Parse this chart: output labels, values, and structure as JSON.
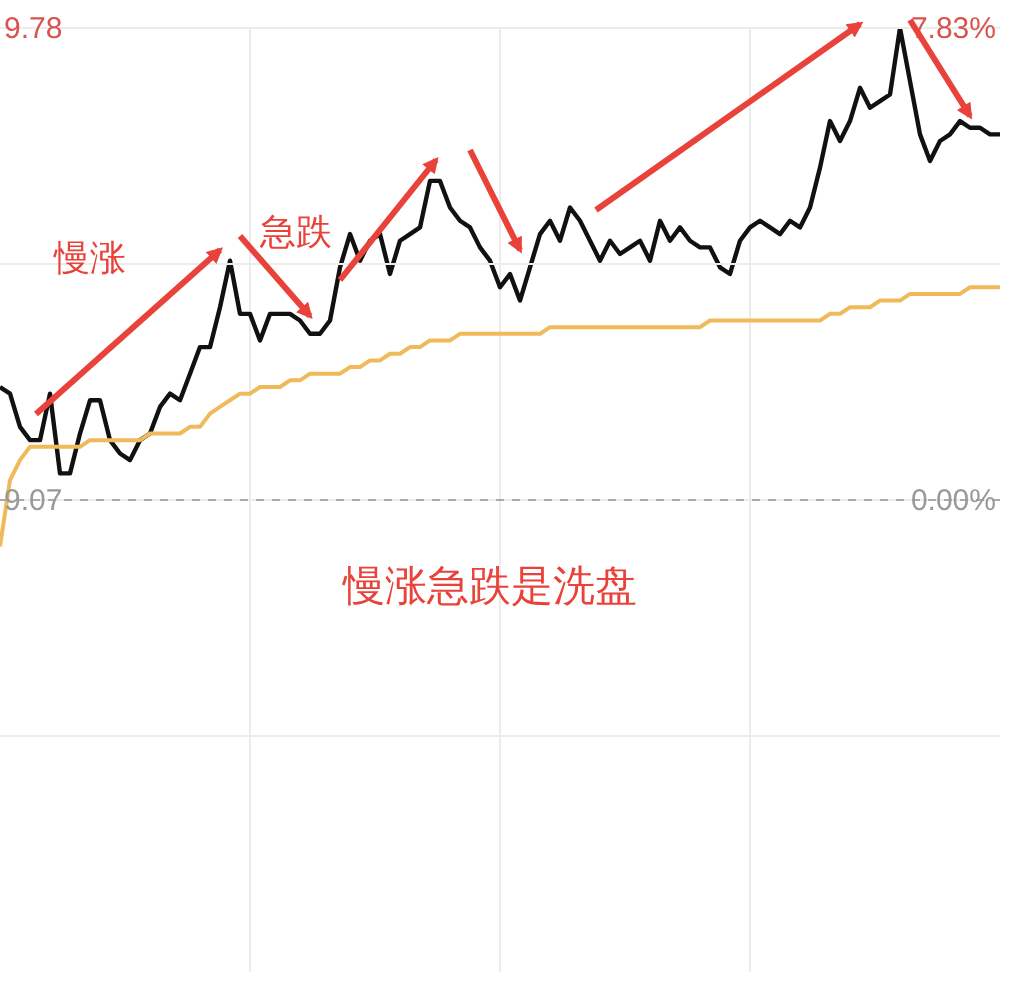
{
  "chart_data": {
    "type": "line",
    "categories": [
      null,
      null,
      null,
      null,
      null,
      null,
      null,
      null,
      null,
      null,
      null,
      null,
      null,
      null,
      null,
      null,
      null,
      null,
      null,
      null,
      null,
      null,
      null,
      null,
      null,
      null,
      null,
      null,
      null,
      null,
      null,
      null,
      null,
      null,
      null,
      null,
      null,
      null,
      null,
      null,
      null,
      null,
      null,
      null,
      null,
      null,
      null,
      null,
      null,
      null,
      null,
      null,
      null,
      null,
      null,
      null,
      null,
      null,
      null,
      null,
      null,
      null,
      null,
      null,
      null,
      null,
      null,
      null,
      null,
      null,
      null,
      null,
      null,
      null,
      null,
      null,
      null,
      null,
      null,
      null,
      null,
      null,
      null,
      null,
      null,
      null,
      null,
      null,
      null,
      null,
      null,
      null,
      null,
      null,
      null,
      null,
      null,
      null,
      null,
      null,
      null
    ],
    "series": [
      {
        "color": "#111111",
        "values": [
          9.24,
          9.23,
          9.18,
          9.16,
          9.16,
          9.23,
          9.11,
          9.11,
          9.17,
          9.22,
          9.22,
          9.16,
          9.14,
          9.13,
          9.16,
          9.17,
          9.21,
          9.23,
          9.22,
          9.26,
          9.3,
          9.3,
          9.36,
          9.43,
          9.35,
          9.35,
          9.31,
          9.35,
          9.35,
          9.35,
          9.34,
          9.32,
          9.32,
          9.34,
          9.42,
          9.47,
          9.43,
          9.46,
          9.47,
          9.41,
          9.46,
          9.47,
          9.48,
          9.55,
          9.55,
          9.51,
          9.49,
          9.48,
          9.45,
          9.43,
          9.39,
          9.41,
          9.37,
          9.42,
          9.47,
          9.49,
          9.46,
          9.51,
          9.49,
          9.46,
          9.43,
          9.46,
          9.44,
          9.45,
          9.46,
          9.43,
          9.49,
          9.46,
          9.48,
          9.46,
          9.45,
          9.45,
          9.42,
          9.41,
          9.46,
          9.48,
          9.49,
          9.48,
          9.47,
          9.49,
          9.48,
          9.51,
          9.57,
          9.64,
          9.61,
          9.64,
          9.69,
          9.66,
          9.67,
          9.68,
          9.78,
          9.7,
          9.62,
          9.58,
          9.61,
          9.62,
          9.64,
          9.63,
          9.63,
          9.62,
          9.62
        ]
      },
      {
        "color": "#f0b95a",
        "values": [
          9.0,
          9.1,
          9.13,
          9.15,
          9.15,
          9.15,
          9.15,
          9.15,
          9.15,
          9.16,
          9.16,
          9.16,
          9.16,
          9.16,
          9.16,
          9.17,
          9.17,
          9.17,
          9.17,
          9.18,
          9.18,
          9.2,
          9.21,
          9.22,
          9.23,
          9.23,
          9.24,
          9.24,
          9.24,
          9.25,
          9.25,
          9.26,
          9.26,
          9.26,
          9.26,
          9.27,
          9.27,
          9.28,
          9.28,
          9.29,
          9.29,
          9.3,
          9.3,
          9.31,
          9.31,
          9.31,
          9.32,
          9.32,
          9.32,
          9.32,
          9.32,
          9.32,
          9.32,
          9.32,
          9.32,
          9.33,
          9.33,
          9.33,
          9.33,
          9.33,
          9.33,
          9.33,
          9.33,
          9.33,
          9.33,
          9.33,
          9.33,
          9.33,
          9.33,
          9.33,
          9.33,
          9.34,
          9.34,
          9.34,
          9.34,
          9.34,
          9.34,
          9.34,
          9.34,
          9.34,
          9.34,
          9.34,
          9.34,
          9.35,
          9.35,
          9.36,
          9.36,
          9.36,
          9.37,
          9.37,
          9.37,
          9.38,
          9.38,
          9.38,
          9.38,
          9.38,
          9.38,
          9.39,
          9.39,
          9.39,
          9.39
        ]
      }
    ],
    "ylim": [
      8.36,
      9.78
    ],
    "yticks": [
      {
        "value": 8.715,
        "label": null
      },
      9.07,
      {
        "value": 9.425,
        "label": null
      },
      9.78
    ],
    "y2lim": [
      -7.83,
      7.83
    ],
    "y2ticks": [
      {
        "value": 0,
        "label": "0.00%"
      },
      {
        "value": 7.83,
        "label": "7.83%"
      }
    ],
    "ref_lines": [
      {
        "axis": "y",
        "value": 9.07,
        "color": "#aaaaaa",
        "line_style": "dashed"
      }
    ],
    "grid": true,
    "legend": false,
    "marker": "none",
    "line_style": "solid",
    "annotations": [
      "慢涨",
      "急跌",
      "慢涨急跌是洗盘"
    ]
  }
}
